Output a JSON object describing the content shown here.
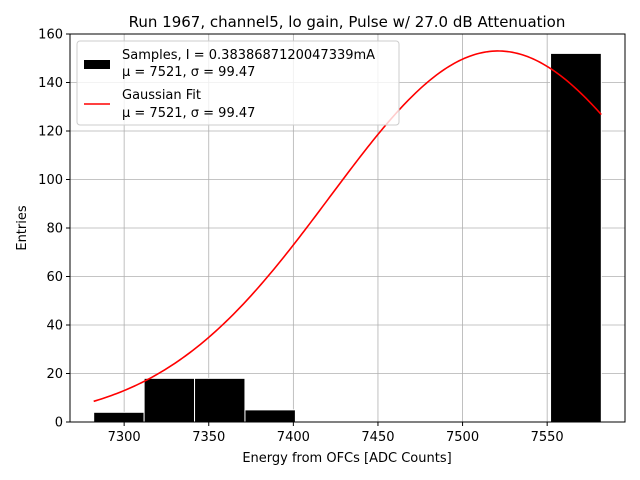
{
  "chart_data": {
    "type": "bar",
    "title": "Run 1967, channel5, lo gain, Pulse w/ 27.0 dB Attenuation",
    "xlabel": "Energy from OFCs [ADC Counts]",
    "ylabel": "Entries",
    "xlim": [
      7268,
      7596
    ],
    "ylim": [
      0,
      160
    ],
    "grid": true,
    "xticks": [
      7300,
      7350,
      7400,
      7450,
      7500,
      7550
    ],
    "yticks": [
      0,
      20,
      40,
      60,
      80,
      100,
      120,
      140,
      160
    ],
    "histogram": {
      "name": "Samples, I = 0.3838687120047339mA",
      "color": "#000000",
      "bins": [
        {
          "left": 7282,
          "right": 7311.8,
          "count": 4
        },
        {
          "left": 7311.8,
          "right": 7341.6,
          "count": 18
        },
        {
          "left": 7341.6,
          "right": 7371.4,
          "count": 18
        },
        {
          "left": 7371.4,
          "right": 7401.2,
          "count": 5
        },
        {
          "left": 7401.2,
          "right": 7431.0,
          "count": 0
        },
        {
          "left": 7431.0,
          "right": 7460.8,
          "count": 0
        },
        {
          "left": 7460.8,
          "right": 7490.6,
          "count": 0
        },
        {
          "left": 7490.6,
          "right": 7520.4,
          "count": 0
        },
        {
          "left": 7520.4,
          "right": 7550.2,
          "count": 0
        },
        {
          "left": 7552,
          "right": 7582,
          "count": 152
        }
      ]
    },
    "fit": {
      "name": "Gaussian Fit",
      "color": "#ff0000",
      "amplitude": 153,
      "mu": 7521,
      "sigma": 99.47,
      "x_start": 7282,
      "x_end": 7582
    },
    "legend": {
      "position": "top-left",
      "entries": [
        {
          "line1": "Samples, I = 0.3838687120047339mA",
          "line2": "μ = 7521, σ = 99.47"
        },
        {
          "line1": "Gaussian Fit",
          "line2": "μ = 7521, σ = 99.47"
        }
      ]
    }
  }
}
